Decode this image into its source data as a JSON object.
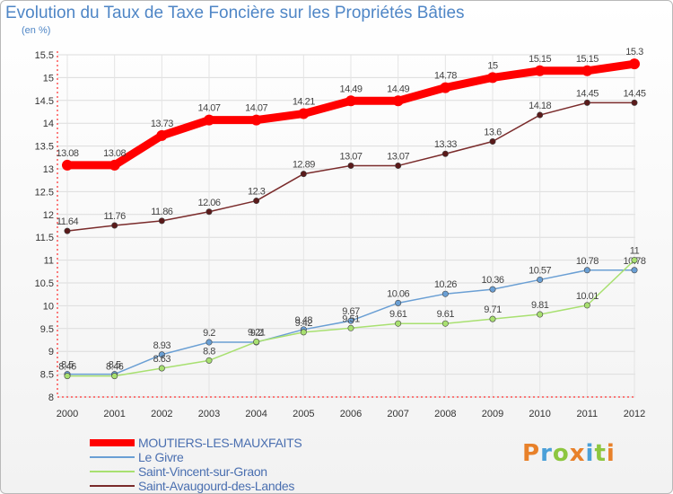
{
  "header": {
    "title": "Evolution du Taux de Taxe Foncière sur les Propriétés Bâties",
    "unit": "(en %)"
  },
  "logo": {
    "text": "Proxiti",
    "colors": [
      "#e8812a",
      "#4aa0d8",
      "#8dc63f",
      "#e8812a",
      "#4aa0d8",
      "#8dc63f",
      "#e8812a"
    ]
  },
  "chart_data": {
    "type": "line",
    "title": "Evolution du Taux de Taxe Foncière sur les Propriétés Bâties",
    "xlabel": "",
    "ylabel": "(en %)",
    "categories": [
      "2000",
      "2001",
      "2002",
      "2003",
      "2004",
      "2005",
      "2006",
      "2007",
      "2008",
      "2009",
      "2010",
      "2011",
      "2012"
    ],
    "ylim": [
      8,
      15.5
    ],
    "yticks": [
      "8",
      "8.5",
      "9",
      "9.5",
      "10",
      "10.5",
      "11",
      "11.5",
      "12",
      "12.5",
      "13",
      "13.5",
      "14",
      "14.5",
      "15",
      "15.5"
    ],
    "grid": true,
    "legend_position": "bottom-left",
    "series": [
      {
        "name": "MOUTIERS-LES-MAUXFAITS",
        "color": "#ff0000",
        "values": [
          13.08,
          13.08,
          13.73,
          14.07,
          14.07,
          14.21,
          14.49,
          14.49,
          14.78,
          15,
          15.15,
          15.15,
          15.3
        ],
        "labels": [
          "13.08",
          "13.08",
          "13.73",
          "14.07",
          "14.07",
          "14.21",
          "14.49",
          "14.49",
          "14.78",
          "15",
          "15.15",
          "15.15",
          "15.3"
        ]
      },
      {
        "name": "Le Givre",
        "color": "#6a9fd4",
        "values": [
          8.5,
          8.5,
          8.93,
          9.2,
          9.2,
          9.48,
          9.67,
          10.06,
          10.26,
          10.36,
          10.57,
          10.78,
          10.78
        ],
        "labels": [
          "8.5",
          "8.5",
          "8.93",
          "9.2",
          "9.2",
          "9.48",
          "9.67",
          "10.06",
          "10.26",
          "10.36",
          "10.57",
          "10.78",
          "10.78"
        ]
      },
      {
        "name": "Saint-Vincent-sur-Graon",
        "color": "#a8e070",
        "values": [
          8.46,
          8.46,
          8.63,
          8.8,
          9.21,
          9.42,
          9.51,
          9.61,
          9.61,
          9.71,
          9.81,
          10.01,
          11
        ],
        "labels": [
          "8.46",
          "8.46",
          "8.63",
          "8.8",
          "9.21",
          "9.42",
          "9.51",
          "9.61",
          "9.61",
          "9.71",
          "9.81",
          "10.01",
          "11"
        ]
      },
      {
        "name": "Saint-Avaugourd-des-Landes",
        "color": "#7a2b2b",
        "values": [
          11.64,
          11.76,
          11.86,
          12.06,
          12.3,
          12.89,
          13.07,
          13.07,
          13.33,
          13.6,
          14.18,
          14.45,
          14.45
        ],
        "labels": [
          "11.64",
          "11.76",
          "11.86",
          "12.06",
          "12.3",
          "12.89",
          "13.07",
          "13.07",
          "13.33",
          "13.6",
          "14.18",
          "14.45",
          "14.45"
        ]
      }
    ]
  }
}
